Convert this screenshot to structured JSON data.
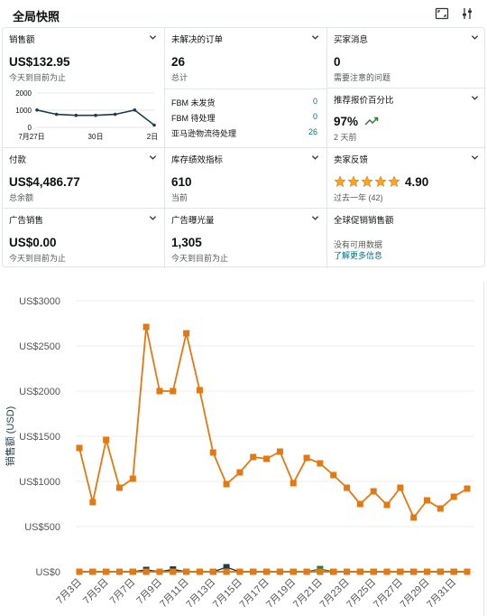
{
  "header": {
    "title": "全局快照"
  },
  "cards": {
    "sales": {
      "label": "销售额",
      "value": "US$132.95",
      "sub": "今天到目前为止"
    },
    "orders": {
      "label": "未解决的订单",
      "value": "26",
      "sub": "总计",
      "rows": [
        {
          "label": "FBM 未发货",
          "value": "0"
        },
        {
          "label": "FBM 待处理",
          "value": "0"
        },
        {
          "label": "亚马逊物流待处理",
          "value": "26"
        }
      ]
    },
    "buyer_messages": {
      "label": "买家消息",
      "value": "0",
      "sub": "需要注意的问题"
    },
    "featured_offer": {
      "label": "推荐报价百分比",
      "value": "97%",
      "sub": "2 天前"
    },
    "payments": {
      "label": "付款",
      "value": "US$4,486.77",
      "sub": "总余额"
    },
    "inventory": {
      "label": "库存绩效指标",
      "value": "610",
      "sub": "当前"
    },
    "feedback": {
      "label": "卖家反馈",
      "value": "4.90",
      "rating": 5,
      "sub": "过去一年 (42)"
    },
    "ad_sales": {
      "label": "广告销售",
      "value": "US$0.00",
      "sub": "今天到目前为止"
    },
    "impressions": {
      "label": "广告曝光量",
      "value": "1,305",
      "sub": "今天到目前为止"
    },
    "global_promo": {
      "label": "全球促销销售额",
      "sub": "没有可用数据",
      "link": "了解更多信息"
    }
  },
  "spark_data": {
    "type": "line",
    "y_ticks": [
      "2000",
      "1000",
      "0"
    ],
    "x_ticks": [
      "7月27日",
      "30日",
      "2日"
    ],
    "ylim": [
      0,
      2000
    ],
    "values": [
      1010,
      760,
      700,
      700,
      760,
      1010,
      130
    ],
    "color": "#1e3c4c"
  },
  "chart_data": {
    "type": "line",
    "ylabel": "销售额 (USD)",
    "y_ticks": [
      "US$0",
      "US$500",
      "US$1000",
      "US$1500",
      "US$2000",
      "US$2500",
      "US$3000"
    ],
    "ylim": [
      0,
      3000
    ],
    "x_tick_labels": [
      "7月3日",
      "7月5日",
      "7月7日",
      "7月9日",
      "7月11日",
      "7月13日",
      "7月15日",
      "7月17日",
      "7月19日",
      "7月21日",
      "7月23日",
      "7月25日",
      "7月27日",
      "7月29日",
      "7月31日"
    ],
    "series": [
      {
        "color": "#e47911",
        "values": [
          1370,
          770,
          1460,
          930,
          1030,
          2710,
          2000,
          2000,
          2640,
          2010,
          1320,
          970,
          1100,
          1270,
          1250,
          1330,
          980,
          1260,
          1200,
          1070,
          930,
          750,
          890,
          740,
          930,
          600,
          790,
          700,
          830,
          920
        ]
      },
      {
        "color": "#1e3c4c",
        "values": [
          0,
          0,
          0,
          0,
          0,
          20,
          0,
          25,
          0,
          0,
          0,
          50,
          0,
          0,
          0,
          0,
          0,
          0,
          0,
          0,
          0,
          0,
          0,
          0,
          0,
          0,
          0,
          0,
          0,
          0
        ]
      },
      {
        "color": "#2e7d32",
        "values": [
          0,
          0,
          0,
          0,
          0,
          0,
          0,
          0,
          0,
          0,
          0,
          0,
          0,
          0,
          0,
          0,
          0,
          0,
          30,
          0,
          0,
          0,
          0,
          0,
          0,
          0,
          0,
          0,
          0,
          0
        ]
      },
      {
        "color": "#e47911",
        "values": [
          0,
          0,
          0,
          0,
          0,
          0,
          0,
          0,
          0,
          0,
          0,
          0,
          0,
          0,
          0,
          0,
          0,
          0,
          0,
          0,
          0,
          0,
          0,
          0,
          0,
          0,
          0,
          0,
          0,
          0
        ]
      }
    ]
  }
}
